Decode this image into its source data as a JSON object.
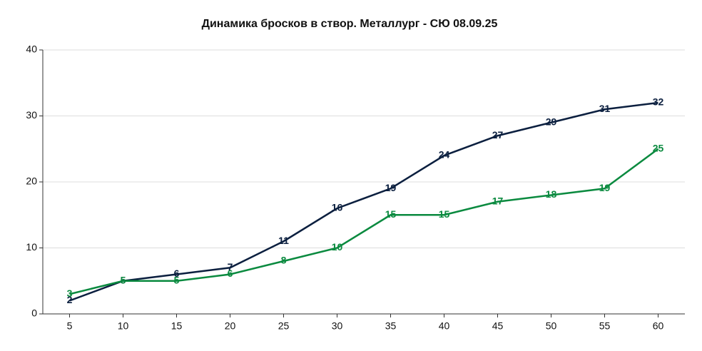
{
  "chart_data": {
    "type": "line",
    "title": "Динамика бросков в створ. Металлург - СЮ 08.09.25",
    "categories": [
      "5",
      "10",
      "15",
      "20",
      "25",
      "30",
      "35",
      "40",
      "45",
      "50",
      "55",
      "60"
    ],
    "series": [
      {
        "color": "#0b1f3f",
        "values": [
          2,
          5,
          6,
          7,
          11,
          16,
          19,
          24,
          27,
          29,
          31,
          32
        ]
      },
      {
        "color": "#0a8a3f",
        "values": [
          3,
          5,
          5,
          6,
          8,
          10,
          15,
          15,
          17,
          18,
          19,
          25
        ]
      }
    ],
    "ylim": [
      0,
      40
    ],
    "yticks": [
      0,
      10,
      20,
      30,
      40
    ],
    "grid": true
  }
}
